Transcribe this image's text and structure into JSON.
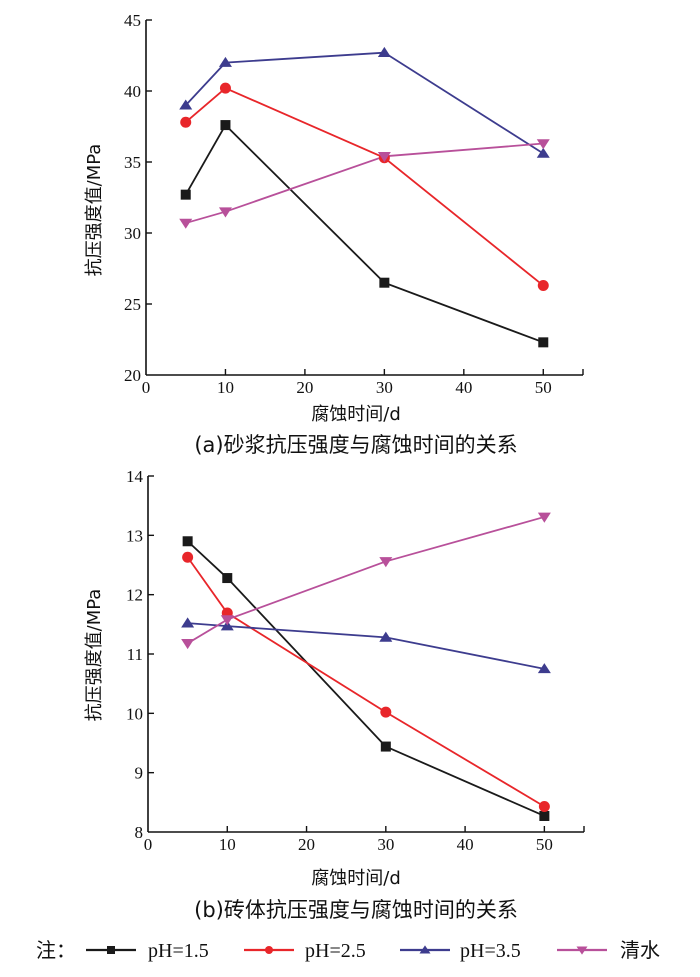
{
  "chart_data": [
    {
      "type": "line",
      "caption": "(a)砂浆抗压强度与腐蚀时间的关系",
      "xlabel": "腐蚀时间/d",
      "ylabel": "抗压强度值/MPa",
      "xlim": [
        0,
        55
      ],
      "ylim": [
        20,
        45
      ],
      "xticks": [
        "0",
        "10",
        "20",
        "30",
        "40",
        "50"
      ],
      "yticks": [
        "20",
        "25",
        "30",
        "35",
        "40",
        "45"
      ],
      "grid": false,
      "x": [
        5,
        10,
        30,
        50
      ],
      "series": [
        {
          "name": "pH=1.5",
          "marker": "square",
          "color": "#1a1a1a",
          "values": [
            32.7,
            37.6,
            26.5,
            22.3
          ]
        },
        {
          "name": "pH=2.5",
          "marker": "circle",
          "color": "#e8262a",
          "values": [
            37.8,
            40.2,
            35.3,
            26.3
          ]
        },
        {
          "name": "pH=3.5",
          "marker": "triangle-up",
          "color": "#3d3c8e",
          "values": [
            39.0,
            42.0,
            42.7,
            35.6
          ]
        },
        {
          "name": "清水",
          "marker": "triangle-down",
          "color": "#b8509a",
          "values": [
            30.7,
            31.5,
            35.4,
            36.3
          ]
        }
      ]
    },
    {
      "type": "line",
      "caption": "(b)砖体抗压强度与腐蚀时间的关系",
      "xlabel": "腐蚀时间/d",
      "ylabel": "抗压强度值/MPa",
      "xlim": [
        0,
        55
      ],
      "ylim": [
        8,
        14
      ],
      "xticks": [
        "0",
        "10",
        "20",
        "30",
        "40",
        "50"
      ],
      "yticks": [
        "8",
        "9",
        "10",
        "11",
        "12",
        "13",
        "14"
      ],
      "grid": false,
      "x": [
        5,
        10,
        30,
        50
      ],
      "series": [
        {
          "name": "pH=1.5",
          "marker": "square",
          "color": "#1a1a1a",
          "values": [
            12.9,
            12.28,
            9.44,
            8.27
          ]
        },
        {
          "name": "pH=2.5",
          "marker": "circle",
          "color": "#e8262a",
          "values": [
            12.63,
            11.69,
            10.02,
            8.43
          ]
        },
        {
          "name": "pH=3.5",
          "marker": "triangle-up",
          "color": "#3d3c8e",
          "values": [
            11.52,
            11.47,
            11.28,
            10.75
          ]
        },
        {
          "name": "清水",
          "marker": "triangle-down",
          "color": "#b8509a",
          "values": [
            11.18,
            11.58,
            12.56,
            13.31
          ]
        }
      ]
    }
  ],
  "legend": {
    "prefix": "注：",
    "placement": "bottom",
    "items": [
      {
        "label": "pH=1.5",
        "marker": "square",
        "color": "#1a1a1a"
      },
      {
        "label": "pH=2.5",
        "marker": "circle",
        "color": "#e8262a"
      },
      {
        "label": "pH=3.5",
        "marker": "triangle-up",
        "color": "#3d3c8e"
      },
      {
        "label": "清水",
        "marker": "triangle-down",
        "color": "#b8509a"
      }
    ]
  }
}
